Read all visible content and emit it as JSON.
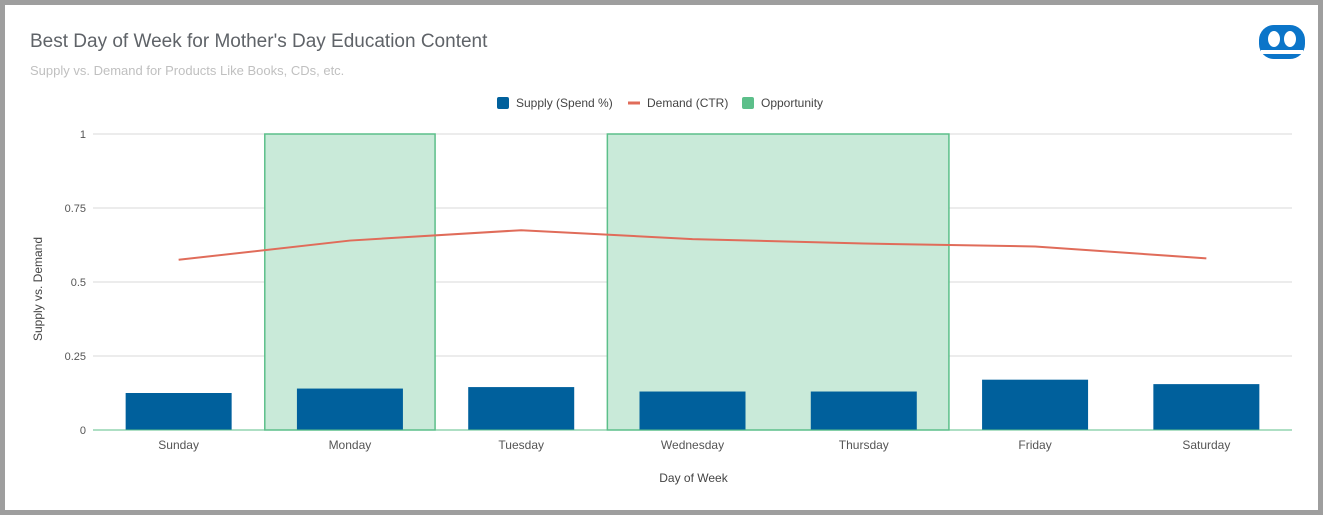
{
  "chart_data": {
    "type": "bar",
    "title": "Best Day of Week for Mother's Day Education Content",
    "subtitle": "Supply vs. Demand for Products Like Books, CDs, etc.",
    "xlabel": "Day of Week",
    "ylabel": "Supply vs. Demand",
    "ylim": [
      0,
      1
    ],
    "yticks": [
      "0",
      "0.25",
      "0.5",
      "0.75",
      "1"
    ],
    "grid": true,
    "legend_position": "top",
    "categories": [
      "Sunday",
      "Monday",
      "Tuesday",
      "Wednesday",
      "Thursday",
      "Friday",
      "Saturday"
    ],
    "series": [
      {
        "name": "Supply (Spend %)",
        "kind": "bar",
        "color": "#00609c",
        "values": [
          0.125,
          0.14,
          0.145,
          0.13,
          0.13,
          0.17,
          0.155
        ]
      },
      {
        "name": "Demand (CTR)",
        "kind": "line",
        "color": "#e06c5a",
        "values": [
          0.575,
          0.64,
          0.675,
          0.645,
          0.63,
          0.62,
          0.58
        ]
      },
      {
        "name": "Opportunity",
        "kind": "area",
        "color": "#5cbf8a",
        "fill": "#c9ead9",
        "values": [
          0,
          1,
          0,
          1,
          1,
          0,
          0
        ]
      }
    ]
  },
  "colors": {
    "grid": "#d9d9d9",
    "baseline": "#5cbf8a",
    "text": "#444444",
    "tick_text": "#555555"
  },
  "logo": {
    "icon": "smiley-face-icon",
    "color": "#0b75c9"
  }
}
